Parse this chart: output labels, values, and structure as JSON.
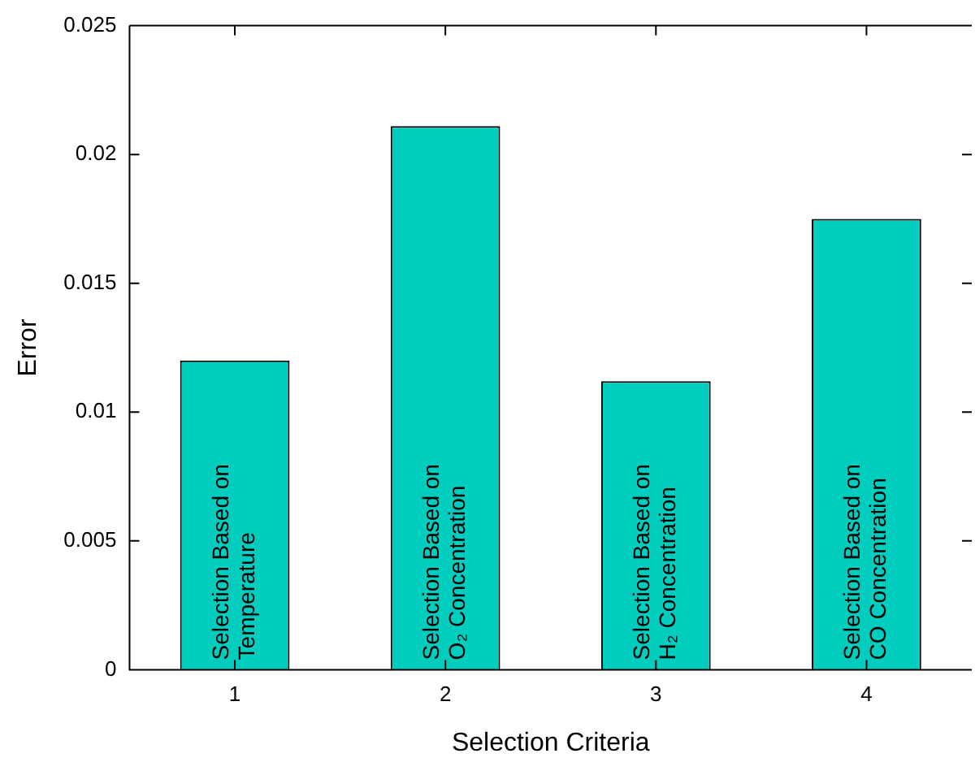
{
  "chart_data": {
    "type": "bar",
    "xlabel": "Selection Criteria",
    "ylabel": "Error",
    "categories": [
      "1",
      "2",
      "3",
      "4"
    ],
    "values": [
      0.012,
      0.0211,
      0.0112,
      0.0175
    ],
    "color": "#00cdbe",
    "ylim": [
      0,
      0.025
    ],
    "yticks": [
      0,
      0.005,
      0.01,
      0.015,
      0.02,
      0.025
    ],
    "grid": false,
    "legend": false,
    "annotations": [
      {
        "text": "Selection Based on\nTemperature",
        "x": "1",
        "y": 0
      },
      {
        "text": "Selection Based on\nO₂ Concentration",
        "x": "2",
        "y": 0
      },
      {
        "text": "Selection Based on\nH₂ Concentration",
        "x": "3",
        "y": 0
      },
      {
        "text": "Selection Based on\nCO Concentration",
        "x": "4",
        "y": 0
      }
    ]
  }
}
